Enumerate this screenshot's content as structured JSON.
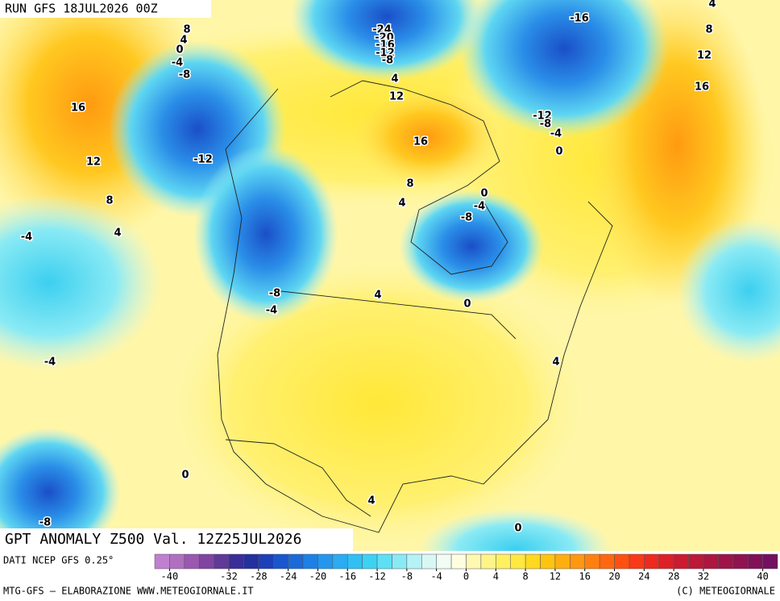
{
  "header": {
    "run": "RUN GFS 18JUL2026 00Z"
  },
  "title": "GPT ANOMALY Z500 Val. 12Z25JUL2026",
  "source": "DATI NCEP GFS 0.25°",
  "credit_left": "MTG-GFS — ELABORAZIONE WWW.METEOGIORNALE.IT",
  "credit_right": "(C) METEOGIORNALE",
  "colorbar": {
    "ticks": [
      -40,
      -32,
      -28,
      -24,
      -20,
      -16,
      -12,
      -8,
      -4,
      0,
      4,
      8,
      12,
      16,
      20,
      24,
      28,
      32,
      40
    ],
    "colors": [
      "#c080d0",
      "#b070c0",
      "#9a58b0",
      "#7f45a0",
      "#5f3a98",
      "#3a2d98",
      "#23309e",
      "#1d3fb8",
      "#1a55cc",
      "#1b6ad8",
      "#1e80e4",
      "#2596ee",
      "#2aabf2",
      "#30c0f4",
      "#3cd2f4",
      "#5ee0f4",
      "#8aeaf4",
      "#b4f2f6",
      "#d8f8f6",
      "#f0fcf4",
      "#fffee0",
      "#fff8b0",
      "#fff488",
      "#fff060",
      "#ffe840",
      "#ffd820",
      "#ffc410",
      "#ffae10",
      "#ff9810",
      "#ff8010",
      "#ff6810",
      "#ff5010",
      "#f83a18",
      "#ec2a20",
      "#dc2028",
      "#cc1a30",
      "#bc1838",
      "#ac1640",
      "#9e1448",
      "#901250",
      "#821058",
      "#741060"
    ]
  },
  "contour_labels": [
    8,
    4,
    0,
    -4,
    -8,
    16,
    12,
    8,
    4,
    -4,
    -12,
    -4,
    -8,
    -4,
    4,
    0,
    -24,
    -20,
    -16,
    -12,
    -8,
    4,
    12,
    16,
    8,
    4,
    0,
    -4,
    -8,
    -16,
    4,
    8,
    12,
    16,
    -12,
    -8,
    -4,
    0,
    4,
    0,
    4,
    -8,
    0
  ]
}
